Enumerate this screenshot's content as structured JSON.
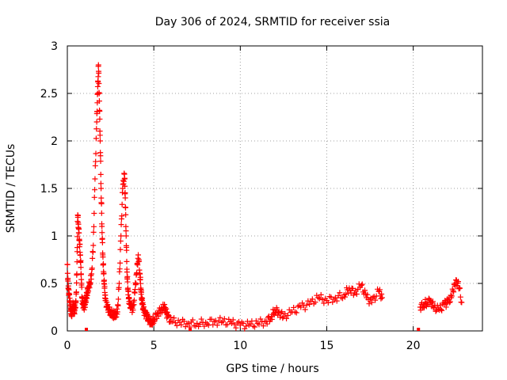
{
  "chart_data": {
    "type": "scatter",
    "title": "Day 306 of 2024, SRMTID for receiver ssia",
    "xlabel": "GPS time / hours",
    "ylabel": "SRMTID / TECUs",
    "xlim": [
      0,
      24
    ],
    "ylim": [
      0,
      3
    ],
    "grid": true,
    "marker": "+",
    "x_ticks": [
      0,
      5,
      10,
      15,
      20
    ],
    "x_tick_labels": [
      "0",
      "5",
      "10",
      "15",
      "20"
    ],
    "y_ticks": [
      0,
      0.5,
      1,
      1.5,
      2,
      2.5,
      3
    ],
    "y_tick_labels": [
      "0",
      "0.5",
      "1",
      "1.5",
      "2",
      "2.5",
      "3"
    ],
    "series": [
      {
        "name": "SRMTID",
        "color": "#ff0000",
        "x": [
          0.0,
          0.05,
          0.1,
          0.15,
          0.2,
          0.25,
          0.3,
          0.35,
          0.4,
          0.45,
          0.5,
          0.55,
          0.6,
          0.65,
          0.7,
          0.75,
          0.8,
          0.85,
          0.9,
          0.95,
          1.0,
          1.05,
          1.1,
          1.15,
          1.2,
          1.3,
          1.4,
          1.5,
          1.6,
          1.7,
          1.75,
          1.8,
          1.85,
          1.9,
          1.95,
          2.0,
          2.05,
          2.1,
          2.15,
          2.2,
          2.3,
          2.4,
          2.5,
          2.6,
          2.7,
          2.8,
          2.9,
          3.0,
          3.1,
          3.2,
          3.3,
          3.35,
          3.4,
          3.45,
          3.5,
          3.55,
          3.6,
          3.7,
          3.8,
          3.9,
          4.0,
          4.1,
          4.2,
          4.25,
          4.3,
          4.35,
          4.4,
          4.5,
          4.6,
          4.7,
          4.8,
          4.9,
          5.0,
          5.2,
          5.4,
          5.6,
          5.7,
          5.8,
          6.0,
          6.5,
          7.0,
          7.5,
          8.0,
          8.5,
          9.0,
          9.5,
          10.0,
          10.5,
          11.0,
          11.5,
          11.8,
          12.0,
          12.2,
          12.5,
          13.0,
          13.5,
          14.0,
          14.5,
          15.0,
          15.5,
          16.0,
          16.3,
          16.6,
          17.0,
          17.3,
          17.6,
          18.0,
          18.2,
          20.4,
          20.6,
          20.8,
          21.0,
          21.2,
          21.5,
          21.8,
          22.0,
          22.2,
          22.4,
          22.6,
          22.8
        ],
        "y": [
          0.7,
          0.45,
          0.38,
          0.3,
          0.22,
          0.18,
          0.25,
          0.28,
          0.2,
          0.25,
          0.3,
          0.6,
          1.22,
          1.08,
          0.95,
          0.8,
          0.6,
          0.35,
          0.28,
          0.25,
          0.27,
          0.3,
          0.35,
          0.4,
          0.45,
          0.5,
          0.6,
          0.9,
          1.6,
          2.2,
          2.5,
          2.8,
          2.42,
          2.0,
          1.5,
          1.1,
          0.8,
          0.6,
          0.45,
          0.32,
          0.25,
          0.22,
          0.2,
          0.18,
          0.17,
          0.18,
          0.2,
          0.5,
          1.0,
          1.5,
          1.65,
          1.4,
          1.0,
          0.62,
          0.45,
          0.35,
          0.28,
          0.25,
          0.22,
          0.4,
          0.6,
          0.8,
          0.6,
          0.45,
          0.35,
          0.28,
          0.22,
          0.18,
          0.15,
          0.12,
          0.1,
          0.1,
          0.12,
          0.18,
          0.22,
          0.25,
          0.2,
          0.15,
          0.1,
          0.09,
          0.08,
          0.08,
          0.09,
          0.1,
          0.1,
          0.08,
          0.06,
          0.06,
          0.08,
          0.1,
          0.15,
          0.22,
          0.2,
          0.15,
          0.2,
          0.25,
          0.28,
          0.35,
          0.32,
          0.35,
          0.38,
          0.45,
          0.4,
          0.48,
          0.35,
          0.3,
          0.42,
          0.35,
          0.25,
          0.28,
          0.3,
          0.32,
          0.25,
          0.22,
          0.28,
          0.3,
          0.35,
          0.5,
          0.52,
          0.3
        ],
        "isolated_points": {
          "x": [
            1.1,
            7.1,
            20.3
          ],
          "y": [
            0.0,
            0.0,
            0.0
          ]
        }
      }
    ]
  }
}
